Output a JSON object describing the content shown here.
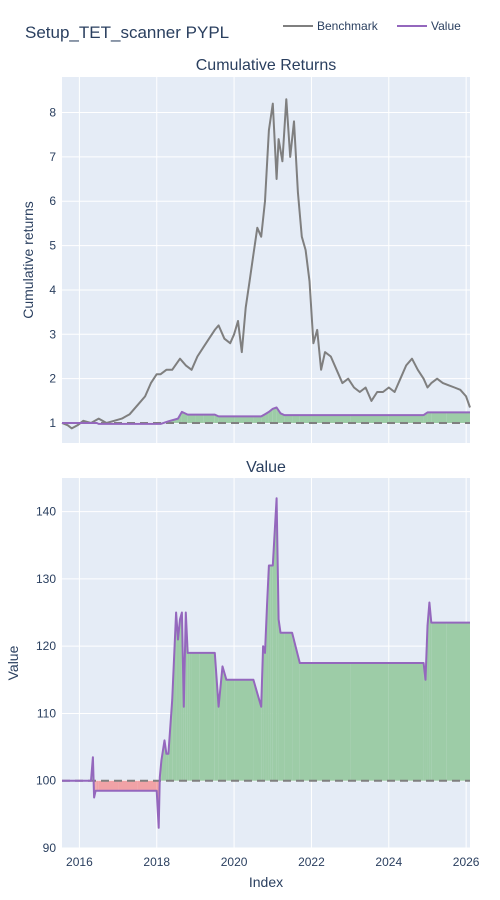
{
  "figure": {
    "title": "Setup_TET_scanner PYPL",
    "x_axis_title": "Index"
  },
  "legend": [
    {
      "name": "Benchmark",
      "color": "#7f7f7f"
    },
    {
      "name": "Value",
      "color": "#9467bd"
    }
  ],
  "colors": {
    "plot_bg": "#e5ecf6",
    "grid": "#ffffff",
    "benchmark": "#7f7f7f",
    "value": "#9467bd",
    "gain_fill": "#9dcca7",
    "loss_fill": "#f1a2a6",
    "baseline": "#7f7f7f"
  },
  "chart_data": [
    {
      "type": "line",
      "title": "Cumulative Returns",
      "ylabel": "Cumulative returns",
      "xlabel": "",
      "xlim": [
        2015.55,
        2026.1
      ],
      "ylim": [
        0.55,
        8.8
      ],
      "x_ticks": [
        "2016",
        "2018",
        "2020",
        "2022",
        "2024",
        "2026"
      ],
      "y_ticks": [
        "1",
        "2",
        "3",
        "4",
        "5",
        "6",
        "7",
        "8"
      ],
      "baseline": 1,
      "grid": true,
      "series": [
        {
          "name": "Benchmark",
          "x": [
            2015.55,
            2015.7,
            2015.8,
            2015.95,
            2016.1,
            2016.3,
            2016.5,
            2016.7,
            2016.9,
            2017.1,
            2017.3,
            2017.5,
            2017.7,
            2017.85,
            2018.0,
            2018.1,
            2018.25,
            2018.4,
            2018.6,
            2018.75,
            2018.9,
            2019.05,
            2019.2,
            2019.35,
            2019.5,
            2019.6,
            2019.75,
            2019.9,
            2020.0,
            2020.1,
            2020.2,
            2020.3,
            2020.4,
            2020.5,
            2020.6,
            2020.7,
            2020.8,
            2020.9,
            2021.0,
            2021.1,
            2021.15,
            2021.25,
            2021.35,
            2021.45,
            2021.55,
            2021.65,
            2021.75,
            2021.85,
            2021.95,
            2022.05,
            2022.15,
            2022.25,
            2022.35,
            2022.5,
            2022.65,
            2022.8,
            2022.95,
            2023.1,
            2023.25,
            2023.4,
            2023.55,
            2023.7,
            2023.85,
            2024.0,
            2024.15,
            2024.3,
            2024.45,
            2024.6,
            2024.75,
            2024.9,
            2025.0,
            2025.1,
            2025.25,
            2025.4,
            2025.55,
            2025.7,
            2025.85,
            2026.0,
            2026.1
          ],
          "values": [
            1.0,
            0.95,
            0.88,
            0.95,
            1.05,
            1.0,
            1.1,
            1.0,
            1.05,
            1.1,
            1.2,
            1.4,
            1.6,
            1.9,
            2.1,
            2.1,
            2.2,
            2.2,
            2.45,
            2.3,
            2.2,
            2.5,
            2.7,
            2.9,
            3.1,
            3.2,
            2.9,
            2.8,
            3.0,
            3.3,
            2.6,
            3.6,
            4.2,
            4.8,
            5.4,
            5.2,
            6.0,
            7.6,
            8.2,
            6.5,
            7.4,
            6.9,
            8.3,
            7.0,
            7.8,
            6.2,
            5.2,
            4.9,
            4.2,
            2.8,
            3.1,
            2.2,
            2.6,
            2.5,
            2.2,
            1.9,
            2.0,
            1.8,
            1.7,
            1.8,
            1.5,
            1.7,
            1.7,
            1.8,
            1.7,
            2.0,
            2.3,
            2.45,
            2.2,
            2.0,
            1.8,
            1.9,
            2.0,
            1.9,
            1.85,
            1.8,
            1.75,
            1.6,
            1.35
          ]
        },
        {
          "name": "Value",
          "x": [
            2015.55,
            2016.0,
            2016.45,
            2016.5,
            2017.5,
            2018.1,
            2018.3,
            2018.55,
            2018.65,
            2018.8,
            2019.0,
            2019.2,
            2019.5,
            2019.6,
            2020.0,
            2020.5,
            2020.7,
            2020.8,
            2020.9,
            2021.0,
            2021.1,
            2021.2,
            2021.3,
            2021.5,
            2021.7,
            2022.0,
            2023.0,
            2024.0,
            2024.9,
            2025.0,
            2025.1,
            2025.5,
            2026.1
          ],
          "values": [
            1.0,
            1.0,
            1.0,
            0.98,
            0.98,
            0.98,
            1.04,
            1.1,
            1.25,
            1.19,
            1.19,
            1.19,
            1.19,
            1.15,
            1.15,
            1.15,
            1.15,
            1.2,
            1.25,
            1.32,
            1.35,
            1.22,
            1.18,
            1.18,
            1.18,
            1.18,
            1.18,
            1.18,
            1.18,
            1.24,
            1.24,
            1.24,
            1.24
          ]
        }
      ]
    },
    {
      "type": "area",
      "title": "Value",
      "ylabel": "Value",
      "xlabel": "Index",
      "xlim": [
        2015.55,
        2026.1
      ],
      "ylim": [
        90,
        145
      ],
      "x_ticks": [
        "2016",
        "2018",
        "2020",
        "2022",
        "2024",
        "2026"
      ],
      "y_ticks": [
        "90",
        "100",
        "110",
        "120",
        "130",
        "140"
      ],
      "baseline": 100,
      "grid": true,
      "series": [
        {
          "name": "Value",
          "x": [
            2015.55,
            2016.3,
            2016.35,
            2016.38,
            2016.42,
            2016.45,
            2016.5,
            2017.0,
            2017.5,
            2018.0,
            2018.05,
            2018.08,
            2018.12,
            2018.2,
            2018.25,
            2018.3,
            2018.4,
            2018.5,
            2018.55,
            2018.6,
            2018.65,
            2018.7,
            2018.75,
            2018.8,
            2018.85,
            2018.9,
            2019.1,
            2019.5,
            2019.6,
            2019.7,
            2019.8,
            2020.0,
            2020.5,
            2020.7,
            2020.75,
            2020.8,
            2020.85,
            2020.9,
            2020.95,
            2021.0,
            2021.1,
            2021.15,
            2021.2,
            2021.3,
            2021.5,
            2021.7,
            2022.0,
            2023.0,
            2024.0,
            2024.9,
            2024.95,
            2025.0,
            2025.05,
            2025.1,
            2025.5,
            2026.1
          ],
          "values": [
            100,
            100,
            103.5,
            97.5,
            98.5,
            98.5,
            98.5,
            98.5,
            98.5,
            98.5,
            93.0,
            100.5,
            103,
            106,
            104,
            104,
            112,
            125,
            121,
            124,
            125,
            111,
            125,
            119,
            119,
            119,
            119,
            119,
            111,
            117,
            115,
            115,
            115,
            111,
            120,
            119,
            126,
            132,
            132,
            132,
            142,
            124,
            122,
            122,
            122,
            117.5,
            117.5,
            117.5,
            117.5,
            117.5,
            115,
            123,
            126.5,
            123.5,
            123.5,
            123.5
          ]
        }
      ]
    }
  ]
}
